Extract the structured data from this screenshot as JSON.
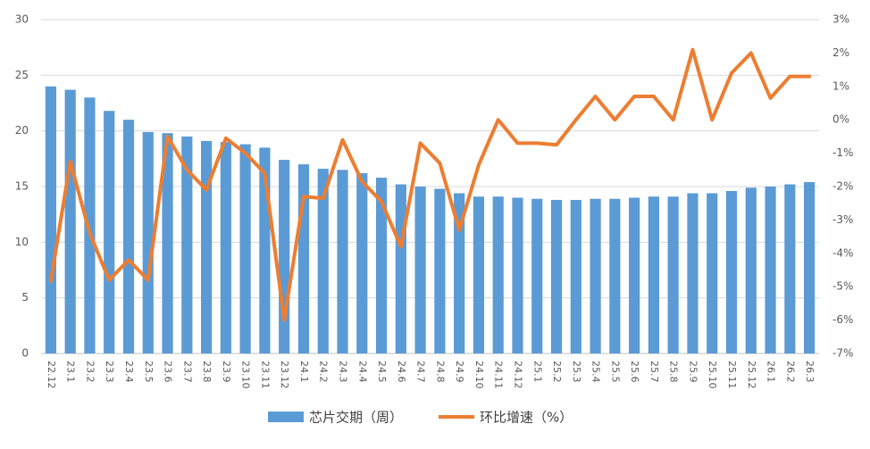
{
  "chart_data": {
    "type": "bar_line",
    "categories": [
      "22.12",
      "23.1",
      "23.2",
      "23.3",
      "23.4",
      "23.5",
      "23.6",
      "23.7",
      "23.8",
      "23.9",
      "23.10",
      "23.11",
      "23.12",
      "24.1",
      "24.2",
      "24.3",
      "24.4",
      "24.5",
      "24.6",
      "24.7",
      "24.8",
      "24.9",
      "24.10",
      "24.11",
      "24.12",
      "25.1",
      "25.2",
      "25.3",
      "25.4",
      "25.5",
      "25.6",
      "25.7",
      "25.8",
      "25.9",
      "25.10",
      "25.11",
      "25.12",
      "26.1",
      "26.2",
      "26.3"
    ],
    "series": [
      {
        "name": "芯片交期（周）",
        "type": "bar",
        "color": "#5b9bd5",
        "values": [
          24.0,
          23.7,
          23.0,
          21.8,
          21.0,
          19.9,
          19.8,
          19.5,
          19.1,
          19.0,
          18.8,
          18.5,
          17.4,
          17.0,
          16.6,
          16.5,
          16.2,
          15.8,
          15.2,
          15.0,
          14.8,
          14.4,
          14.1,
          14.1,
          14.0,
          13.9,
          13.8,
          13.8,
          13.9,
          13.9,
          14.0,
          14.1,
          14.1,
          14.4,
          14.4,
          14.6,
          14.9,
          15.0,
          15.2,
          15.4
        ]
      },
      {
        "name": "环比增速（%）",
        "type": "line",
        "axis": "y2",
        "color": "#ed7d31",
        "values": [
          -4.83,
          -1.25,
          -3.4,
          -4.8,
          -4.2,
          -4.8,
          -0.5,
          -1.5,
          -2.1,
          -0.55,
          -1.0,
          -1.6,
          -6.0,
          -2.3,
          -2.35,
          -0.6,
          -1.85,
          -2.45,
          -3.8,
          -0.7,
          -1.3,
          -3.3,
          -1.35,
          0,
          -0.7,
          -0.7,
          -0.75,
          0,
          0.7,
          0,
          0.7,
          0.7,
          0,
          2.1,
          0,
          1.4,
          2.0,
          0.65,
          1.3,
          1.3
        ]
      }
    ],
    "ylim": [
      0,
      30
    ],
    "yticks": [
      0,
      5,
      10,
      15,
      20,
      25,
      30
    ],
    "y2lim": [
      -7,
      3
    ],
    "y2ticks": [
      {
        "value": -7,
        "label": "-7%"
      },
      {
        "value": -6,
        "label": "-6%"
      },
      {
        "value": -5,
        "label": "-5%"
      },
      {
        "value": -4,
        "label": "-4%"
      },
      {
        "value": -3,
        "label": "-3%"
      },
      {
        "value": -2,
        "label": "-2%"
      },
      {
        "value": -1,
        "label": "-1%"
      },
      {
        "value": 0,
        "label": "0%"
      },
      {
        "value": 1,
        "label": "1%"
      },
      {
        "value": 2,
        "label": "2%"
      },
      {
        "value": 3,
        "label": "3%"
      }
    ],
    "grid": true,
    "legend": "bottom"
  }
}
